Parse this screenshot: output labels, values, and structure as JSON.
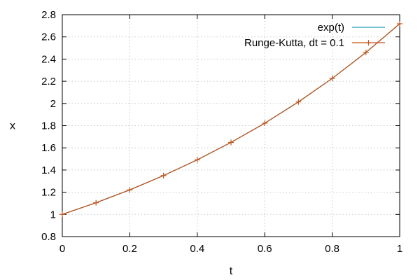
{
  "chart_data": {
    "type": "line",
    "title": "",
    "xlabel": "t",
    "ylabel": "x",
    "xlim": [
      0,
      1
    ],
    "ylim": [
      0.8,
      2.8
    ],
    "xticks": [
      0,
      0.2,
      0.4,
      0.6,
      0.8,
      1
    ],
    "xtick_labels": [
      "0",
      "0.2",
      "0.4",
      "0.6",
      "0.8",
      "1"
    ],
    "yticks": [
      0.8,
      1,
      1.2,
      1.4,
      1.6,
      1.8,
      2,
      2.2,
      2.4,
      2.6,
      2.8
    ],
    "ytick_labels": [
      "0.8",
      "1",
      "1.2",
      "1.4",
      "1.6",
      "1.8",
      "2",
      "2.2",
      "2.4",
      "2.6",
      "2.8"
    ],
    "grid": true,
    "legend_position": "top-right",
    "series": [
      {
        "name": "exp(t)",
        "style": "line",
        "color": "#1fa0b4",
        "x": [
          0,
          0.1,
          0.2,
          0.3,
          0.4,
          0.5,
          0.6,
          0.7,
          0.8,
          0.9,
          1.0
        ],
        "y": [
          1.0,
          1.105,
          1.221,
          1.35,
          1.492,
          1.649,
          1.822,
          2.014,
          2.226,
          2.46,
          2.718
        ]
      },
      {
        "name": "Runge-Kutta, dt = 0.1",
        "style": "linespoints",
        "marker": "plus",
        "color": "#c0561e",
        "x": [
          0,
          0.1,
          0.2,
          0.3,
          0.4,
          0.5,
          0.6,
          0.7,
          0.8,
          0.9,
          1.0
        ],
        "y": [
          1.0,
          1.105,
          1.221,
          1.35,
          1.492,
          1.649,
          1.822,
          2.014,
          2.226,
          2.46,
          2.718
        ]
      }
    ]
  }
}
